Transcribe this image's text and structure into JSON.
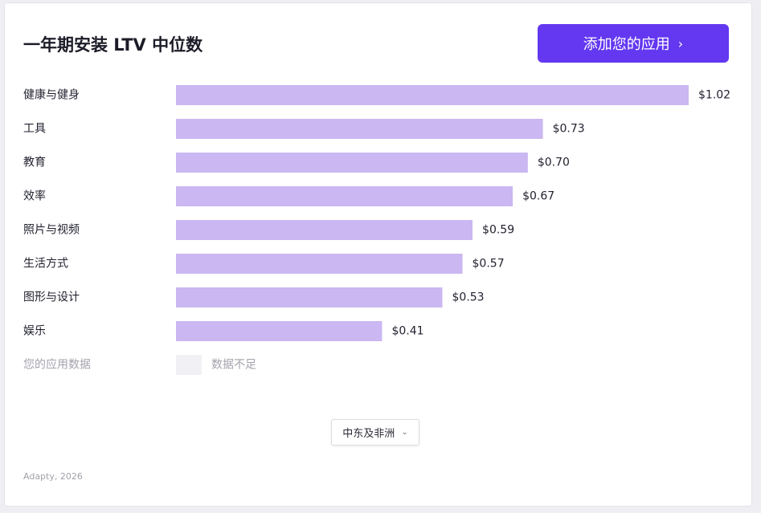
{
  "title": "一年期安装 LTV 中位数",
  "add_button": {
    "label": "添加您的应用",
    "chevron": "›"
  },
  "chart_data": {
    "type": "bar",
    "orientation": "horizontal",
    "title": "一年期安装 LTV 中位数",
    "categories": [
      "健康与健身",
      "工具",
      "教育",
      "效率",
      "照片与视频",
      "生活方式",
      "图形与设计",
      "娱乐"
    ],
    "values": [
      1.02,
      0.73,
      0.7,
      0.67,
      0.59,
      0.57,
      0.53,
      0.41
    ],
    "value_labels": [
      "$1.02",
      "$0.73",
      "$0.70",
      "$0.67",
      "$0.59",
      "$0.57",
      "$0.53",
      "$0.41"
    ],
    "extra_row": {
      "category": "您的应用数据",
      "value_label": "数据不足"
    },
    "xlim": [
      0,
      1.02
    ],
    "bar_color": "#cbb7f2",
    "placeholder_color": "#f1f1f5",
    "grid": false
  },
  "region_dropdown": {
    "selected": "中东及非洲"
  },
  "footer": "Adapty, 2026",
  "colors": {
    "accent": "#6338f0",
    "label": "#222230",
    "muted": "#a3a3ad"
  }
}
